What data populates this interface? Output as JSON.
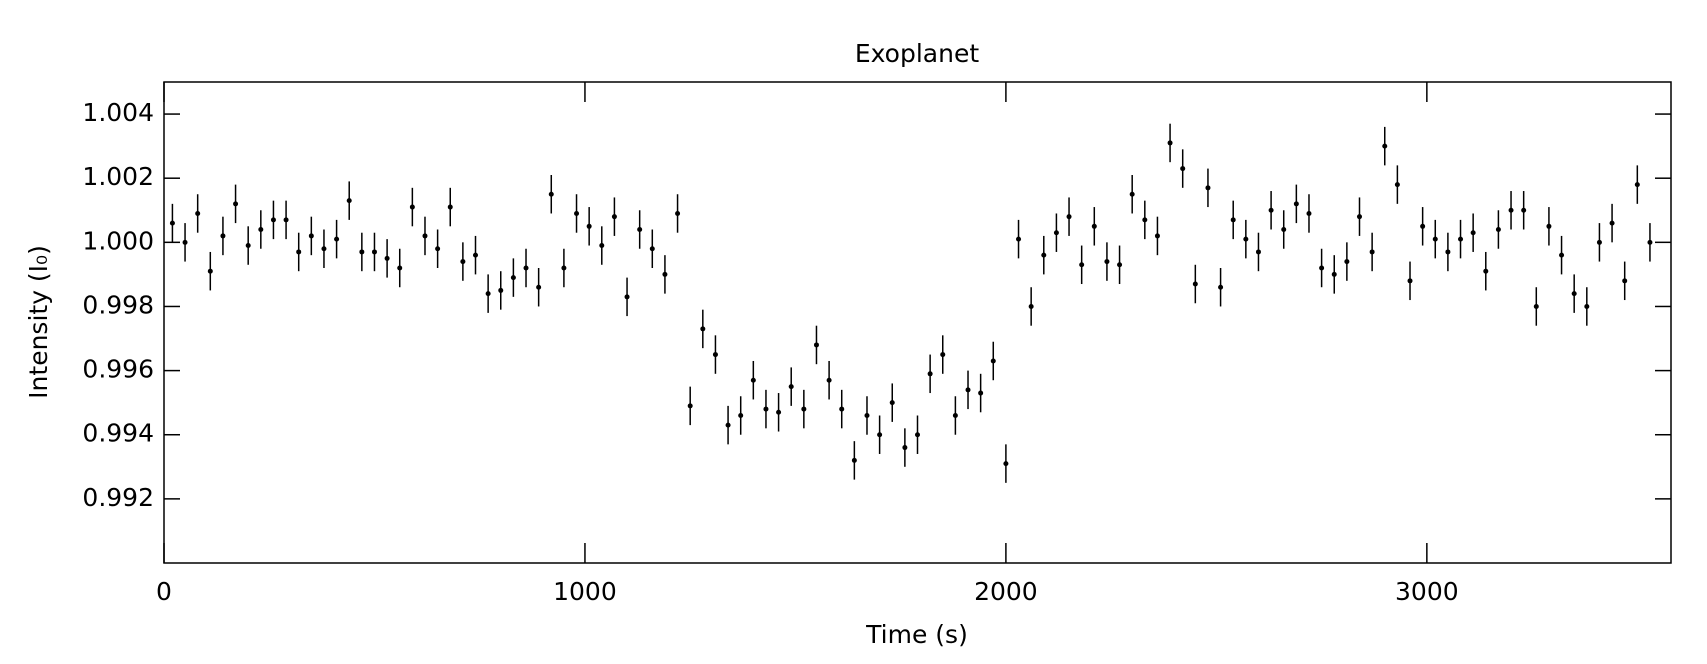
{
  "chart_data": {
    "type": "scatter",
    "title": "Exoplanet",
    "x_label": "Time (s)",
    "y_label": "Intensity (I₀)",
    "x": [
      20,
      50,
      80,
      110,
      140,
      170,
      200,
      230,
      260,
      290,
      320,
      350,
      380,
      410,
      440,
      470,
      500,
      530,
      560,
      590,
      620,
      650,
      680,
      710,
      740,
      770,
      800,
      830,
      860,
      890,
      920,
      950,
      980,
      1010,
      1040,
      1070,
      1100,
      1130,
      1160,
      1190,
      1220,
      1250,
      1280,
      1310,
      1340,
      1370,
      1400,
      1430,
      1460,
      1490,
      1520,
      1550,
      1580,
      1610,
      1640,
      1670,
      1700,
      1730,
      1760,
      1790,
      1820,
      1850,
      1880,
      1910,
      1940,
      1970,
      2000,
      2030,
      2060,
      2090,
      2120,
      2150,
      2180,
      2210,
      2240,
      2270,
      2300,
      2330,
      2360,
      2390,
      2420,
      2450,
      2480,
      2510,
      2540,
      2570,
      2600,
      2630,
      2660,
      2690,
      2720,
      2750,
      2780,
      2810,
      2840,
      2870,
      2900,
      2930,
      2960,
      2990,
      3020,
      3050,
      3080,
      3110,
      3140,
      3170,
      3200,
      3230,
      3260,
      3290,
      3320,
      3350,
      3380,
      3410,
      3440,
      3470,
      3500,
      3530
    ],
    "values": [
      1.0006,
      1.0,
      1.0009,
      0.9991,
      1.0002,
      1.0012,
      0.9999,
      1.0004,
      1.0007,
      1.0007,
      0.9997,
      1.0002,
      0.9998,
      1.0001,
      1.0013,
      0.9997,
      0.9997,
      0.9995,
      0.9992,
      1.0011,
      1.0002,
      0.9998,
      1.0011,
      0.9994,
      0.9996,
      0.9984,
      0.9985,
      0.9989,
      0.9992,
      0.9986,
      1.0015,
      0.9992,
      1.0009,
      1.0005,
      0.9999,
      1.0008,
      0.9983,
      1.0004,
      0.9998,
      0.999,
      1.0009,
      0.9949,
      0.9973,
      0.9965,
      0.9943,
      0.9946,
      0.9957,
      0.9948,
      0.9947,
      0.9955,
      0.9948,
      0.9968,
      0.9957,
      0.9948,
      0.9932,
      0.9946,
      0.994,
      0.995,
      0.9936,
      0.994,
      0.9959,
      0.9965,
      0.9946,
      0.9954,
      0.9953,
      0.9963,
      0.9931,
      1.0001,
      0.998,
      0.9996,
      1.0003,
      1.0008,
      0.9993,
      1.0005,
      0.9994,
      0.9993,
      1.0015,
      1.0007,
      1.0002,
      1.0031,
      1.0023,
      0.9987,
      1.0017,
      0.9986,
      1.0007,
      1.0001,
      0.9997,
      1.001,
      1.0004,
      1.0012,
      1.0009,
      0.9992,
      0.999,
      0.9994,
      1.0008,
      0.9997,
      1.003,
      1.0018,
      0.9988,
      1.0005,
      1.0001,
      0.9997,
      1.0001,
      1.0003,
      0.9991,
      1.0004,
      1.001,
      1.001,
      0.998,
      1.0005,
      0.9996,
      0.9984,
      0.998,
      1.0,
      1.0006,
      0.9988,
      1.0018,
      1.0
    ],
    "yerr": 0.0006,
    "color": "#000000",
    "xlim": [
      0,
      3580
    ],
    "xticks": [
      0,
      1000,
      2000,
      3000
    ],
    "ylim": [
      0.99,
      1.005
    ],
    "yticks": [
      0.992,
      0.994,
      0.996,
      0.998,
      {
        "value": 1.0,
        "label": "1.000"
      },
      1.002,
      1.004
    ]
  }
}
